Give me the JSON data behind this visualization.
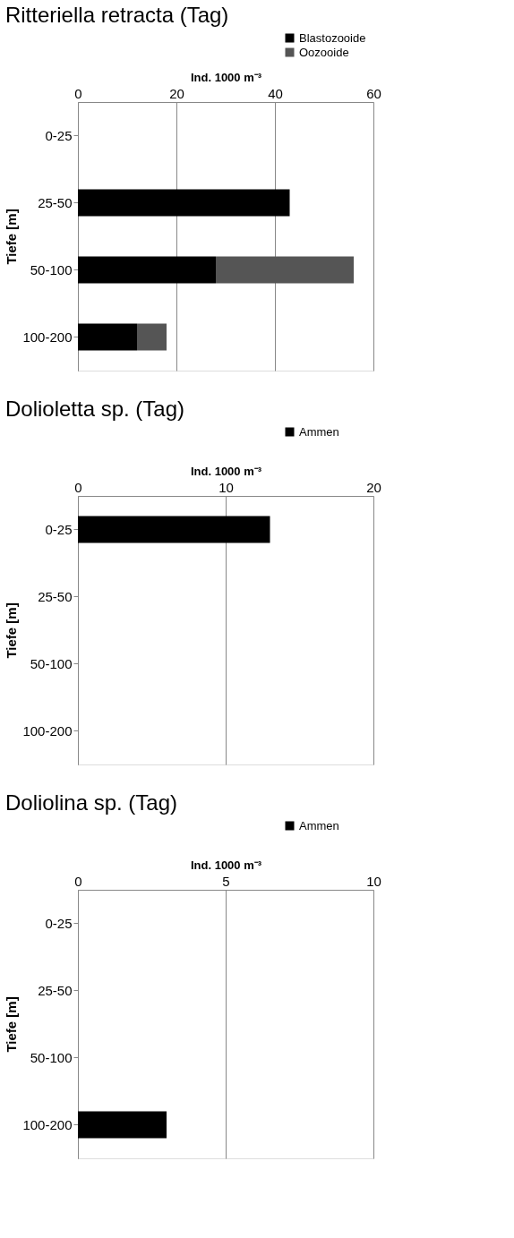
{
  "chart_data": [
    {
      "type": "bar",
      "orientation": "horizontal",
      "stacked": true,
      "title": "Ritteriella retracta (Tag)",
      "xlabel": "Ind. 1000 m⁻³",
      "ylabel": "Tiefe [m]",
      "categories": [
        "0-25",
        "25-50",
        "50-100",
        "100-200"
      ],
      "xlim": [
        0,
        60
      ],
      "xticks": [
        0,
        20,
        40,
        60
      ],
      "grid": "x",
      "legend": "top right",
      "series": [
        {
          "name": "Blastozooide",
          "color": "#000000",
          "values": [
            null,
            43,
            28,
            12
          ]
        },
        {
          "name": "Oozooide",
          "color": "#555555",
          "values": [
            null,
            null,
            28,
            6
          ]
        }
      ]
    },
    {
      "type": "bar",
      "orientation": "horizontal",
      "title": "Dolioletta sp. (Tag)",
      "xlabel": "Ind. 1000 m⁻³",
      "ylabel": "Tiefe [m]",
      "categories": [
        "0-25",
        "25-50",
        "50-100",
        "100-200"
      ],
      "xlim": [
        0,
        20
      ],
      "xticks": [
        0,
        10,
        20
      ],
      "grid": "x",
      "legend": "top right",
      "series": [
        {
          "name": "Ammen",
          "color": "#000000",
          "values": [
            13,
            null,
            null,
            null
          ]
        }
      ]
    },
    {
      "type": "bar",
      "orientation": "horizontal",
      "title": "Doliolina sp. (Tag)",
      "xlabel": "Ind. 1000 m⁻³",
      "ylabel": "Tiefe [m]",
      "categories": [
        "0-25",
        "25-50",
        "50-100",
        "100-200"
      ],
      "xlim": [
        0,
        10
      ],
      "xticks": [
        0,
        5,
        10
      ],
      "grid": "x",
      "legend": "top right",
      "series": [
        {
          "name": "Ammen",
          "color": "#000000",
          "values": [
            null,
            null,
            null,
            3
          ]
        }
      ]
    }
  ]
}
